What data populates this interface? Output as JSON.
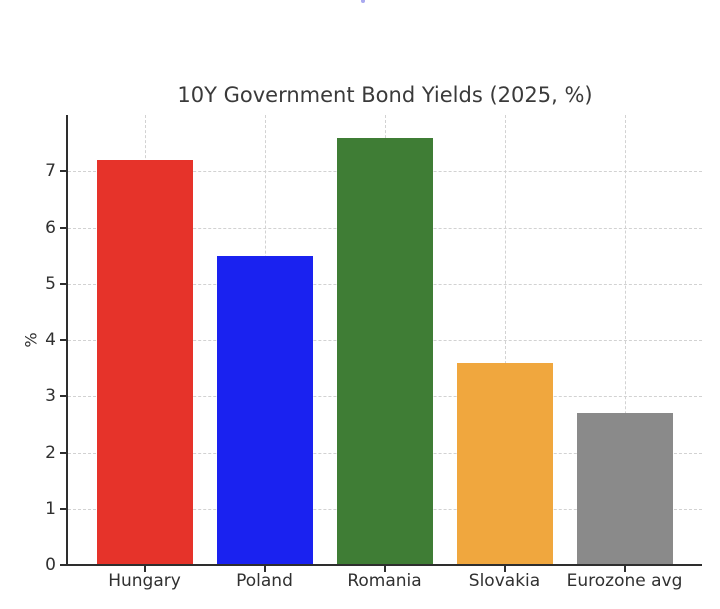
{
  "figure": {
    "title": "10Y Government Bond Yields (2025, %)",
    "ylabel": "%"
  },
  "chart_data": {
    "type": "bar",
    "title": "10Y Government Bond Yields (2025, %)",
    "categories": [
      "Hungary",
      "Poland",
      "Romania",
      "Slovakia",
      "Eurozone avg"
    ],
    "values": [
      7.2,
      5.5,
      7.6,
      3.6,
      2.7
    ],
    "bar_colors": [
      "#e6332a",
      "#1a22f0",
      "#3f7d35",
      "#f0a73e",
      "#8a8a8a"
    ],
    "xlabel": "",
    "ylabel": "%",
    "ylim": [
      0,
      8
    ],
    "yticks": [
      0,
      1,
      2,
      3,
      4,
      5,
      6,
      7
    ],
    "grid": {
      "style": "dashed",
      "color": "#d2d2d2",
      "horizontal": true,
      "vertical": true
    },
    "legend": "none",
    "bar_width_fraction": 0.8
  }
}
